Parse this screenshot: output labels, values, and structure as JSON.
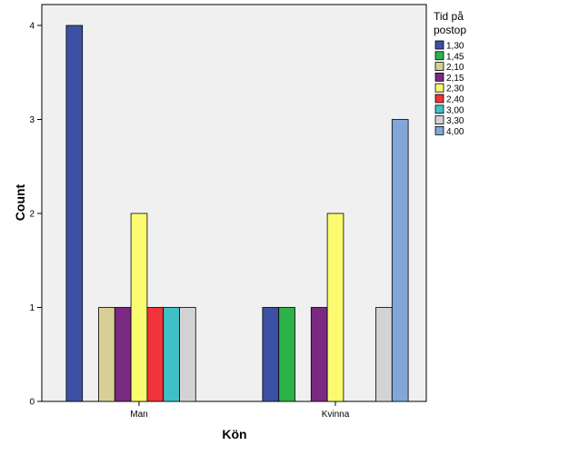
{
  "chart_data": {
    "type": "bar",
    "xlabel": "Kön",
    "ylabel": "Count",
    "ylim": [
      0,
      4
    ],
    "yticks": [
      0,
      1,
      2,
      3,
      4
    ],
    "categories": [
      "Man",
      "Kvinna"
    ],
    "legend": {
      "title_lines": [
        "Tid på",
        "postop"
      ],
      "placement": "right"
    },
    "series": [
      {
        "name": "1,30",
        "color": "#3d51a4",
        "values": [
          4,
          1
        ]
      },
      {
        "name": "1,45",
        "color": "#2db24a",
        "values": [
          0,
          1
        ]
      },
      {
        "name": "2,10",
        "color": "#d7cf94",
        "values": [
          1,
          0
        ]
      },
      {
        "name": "2,15",
        "color": "#7b2a82",
        "values": [
          1,
          1
        ]
      },
      {
        "name": "2,30",
        "color": "#fbfb71",
        "values": [
          2,
          2
        ]
      },
      {
        "name": "2,40",
        "color": "#f0333a",
        "values": [
          1,
          0
        ]
      },
      {
        "name": "3,00",
        "color": "#3fc0c7",
        "values": [
          1,
          0
        ]
      },
      {
        "name": "3,30",
        "color": "#d3d3d3",
        "values": [
          1,
          1
        ]
      },
      {
        "name": "4,00",
        "color": "#82a6d8",
        "values": [
          0,
          3
        ]
      }
    ],
    "colors": {
      "plot_background": "#f0f0f0",
      "bar_stroke": "#000000"
    }
  }
}
